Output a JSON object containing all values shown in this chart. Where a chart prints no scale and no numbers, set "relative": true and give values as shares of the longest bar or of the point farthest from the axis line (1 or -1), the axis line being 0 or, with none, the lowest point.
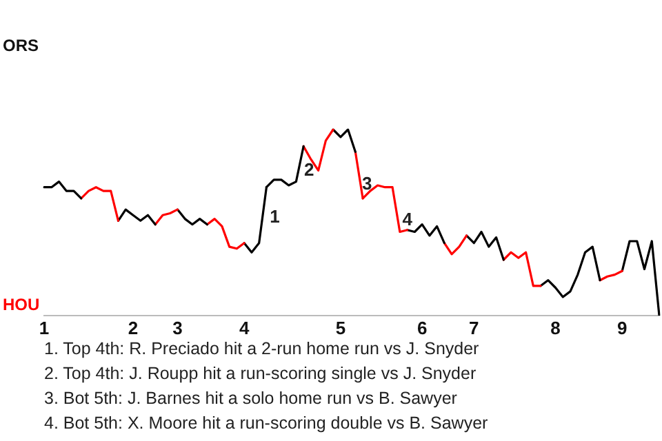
{
  "chart_data": {
    "type": "line",
    "relative": true,
    "categories": [
      "1",
      null,
      null,
      null,
      null,
      null,
      null,
      null,
      null,
      null,
      null,
      null,
      "2",
      null,
      null,
      null,
      null,
      null,
      "3",
      null,
      null,
      null,
      null,
      null,
      null,
      null,
      null,
      "4",
      null,
      null,
      null,
      null,
      null,
      null,
      null,
      null,
      null,
      null,
      null,
      null,
      "5",
      null,
      null,
      null,
      null,
      null,
      null,
      null,
      null,
      null,
      null,
      "6",
      null,
      null,
      null,
      null,
      null,
      null,
      "7",
      null,
      null,
      null,
      null,
      null,
      null,
      null,
      null,
      null,
      null,
      "8",
      null,
      null,
      null,
      null,
      null,
      null,
      null,
      null,
      "9",
      null,
      null,
      null,
      null,
      null
    ],
    "series": [
      {
        "color": "#000000",
        "values": [
          0.69,
          0.69,
          0.72,
          0.67,
          0.67,
          0.63,
          null,
          null,
          null,
          null,
          null,
          null,
          null,
          null,
          null,
          null,
          null,
          null,
          null,
          null,
          null,
          null,
          null,
          null,
          null,
          null,
          null,
          null,
          null,
          null,
          null,
          null,
          null,
          null,
          null,
          null,
          null,
          null,
          null,
          null,
          null,
          null,
          null,
          null,
          null,
          null,
          null,
          null,
          null,
          null,
          null,
          null,
          null,
          null,
          null,
          null,
          null,
          null,
          null,
          null,
          null,
          null,
          null,
          null,
          null,
          null,
          null,
          null,
          null,
          null,
          null,
          null,
          null,
          null,
          null,
          null,
          null,
          null,
          null,
          null,
          null,
          null,
          null,
          null
        ]
      },
      {
        "color": "#ff0000",
        "values": [
          null,
          null,
          null,
          null,
          null,
          0.63,
          0.67,
          0.69,
          0.67,
          0.67,
          0.51,
          null,
          null,
          null,
          null,
          null,
          null,
          null,
          null,
          null,
          null,
          null,
          null,
          null,
          null,
          null,
          null,
          null,
          null,
          null,
          null,
          null,
          null,
          null,
          null,
          null,
          null,
          null,
          null,
          null,
          null,
          null,
          null,
          null,
          null,
          null,
          null,
          null,
          null,
          null,
          null,
          null,
          null,
          null,
          null,
          null,
          null,
          null,
          null,
          null,
          null,
          null,
          null,
          null,
          null,
          null,
          null,
          null,
          null,
          null,
          null,
          null,
          null,
          null,
          null,
          null,
          null,
          null,
          null,
          null,
          null,
          null,
          null,
          null
        ]
      },
      {
        "color": "#000000",
        "values": [
          null,
          null,
          null,
          null,
          null,
          null,
          null,
          null,
          null,
          null,
          0.51,
          0.57,
          0.54,
          0.51,
          0.54,
          0.49,
          null,
          null,
          null,
          null,
          null,
          null,
          null,
          null,
          null,
          null,
          null,
          null,
          null,
          null,
          null,
          null,
          null,
          null,
          null,
          null,
          null,
          null,
          null,
          null,
          null,
          null,
          null,
          null,
          null,
          null,
          null,
          null,
          null,
          null,
          null,
          null,
          null,
          null,
          null,
          null,
          null,
          null,
          null,
          null,
          null,
          null,
          null,
          null,
          null,
          null,
          null,
          null,
          null,
          null,
          null,
          null,
          null,
          null,
          null,
          null,
          null,
          null,
          null,
          null,
          null,
          null,
          null,
          null
        ]
      },
      {
        "color": "#ff0000",
        "values": [
          null,
          null,
          null,
          null,
          null,
          null,
          null,
          null,
          null,
          null,
          null,
          null,
          null,
          null,
          null,
          0.49,
          0.54,
          0.55,
          0.57,
          null,
          null,
          null,
          null,
          null,
          null,
          null,
          null,
          null,
          null,
          null,
          null,
          null,
          null,
          null,
          null,
          null,
          null,
          null,
          null,
          null,
          null,
          null,
          null,
          null,
          null,
          null,
          null,
          null,
          null,
          null,
          null,
          null,
          null,
          null,
          null,
          null,
          null,
          null,
          null,
          null,
          null,
          null,
          null,
          null,
          null,
          null,
          null,
          null,
          null,
          null,
          null,
          null,
          null,
          null,
          null,
          null,
          null,
          null,
          null,
          null,
          null,
          null,
          null,
          null
        ]
      },
      {
        "color": "#000000",
        "values": [
          null,
          null,
          null,
          null,
          null,
          null,
          null,
          null,
          null,
          null,
          null,
          null,
          null,
          null,
          null,
          null,
          null,
          null,
          0.57,
          0.52,
          0.49,
          0.52,
          0.49,
          null,
          null,
          null,
          null,
          null,
          null,
          null,
          null,
          null,
          null,
          null,
          null,
          null,
          null,
          null,
          null,
          null,
          null,
          null,
          null,
          null,
          null,
          null,
          null,
          null,
          null,
          null,
          null,
          null,
          null,
          null,
          null,
          null,
          null,
          null,
          null,
          null,
          null,
          null,
          null,
          null,
          null,
          null,
          null,
          null,
          null,
          null,
          null,
          null,
          null,
          null,
          null,
          null,
          null,
          null,
          null,
          null,
          null,
          null,
          null,
          null
        ]
      },
      {
        "color": "#ff0000",
        "values": [
          null,
          null,
          null,
          null,
          null,
          null,
          null,
          null,
          null,
          null,
          null,
          null,
          null,
          null,
          null,
          null,
          null,
          null,
          null,
          null,
          null,
          null,
          0.49,
          0.52,
          0.48,
          0.37,
          0.36,
          0.39,
          null,
          null,
          null,
          null,
          null,
          null,
          null,
          null,
          null,
          null,
          null,
          null,
          null,
          null,
          null,
          null,
          null,
          null,
          null,
          null,
          null,
          null,
          null,
          null,
          null,
          null,
          null,
          null,
          null,
          null,
          null,
          null,
          null,
          null,
          null,
          null,
          null,
          null,
          null,
          null,
          null,
          null,
          null,
          null,
          null,
          null,
          null,
          null,
          null,
          null,
          null,
          null,
          null,
          null,
          null,
          null
        ]
      },
      {
        "name": "1",
        "color": "#000000",
        "values": [
          null,
          null,
          null,
          null,
          null,
          null,
          null,
          null,
          null,
          null,
          null,
          null,
          null,
          null,
          null,
          null,
          null,
          null,
          null,
          null,
          null,
          null,
          null,
          null,
          null,
          null,
          null,
          0.39,
          0.34,
          0.39,
          0.69,
          null,
          null,
          null,
          null,
          null,
          null,
          null,
          null,
          null,
          null,
          null,
          null,
          null,
          null,
          null,
          null,
          null,
          null,
          null,
          null,
          null,
          null,
          null,
          null,
          null,
          null,
          null,
          null,
          null,
          null,
          null,
          null,
          null,
          null,
          null,
          null,
          null,
          null,
          null,
          null,
          null,
          null,
          null,
          null,
          null,
          null,
          null,
          null,
          null,
          null,
          null,
          null,
          null
        ]
      },
      {
        "name": "2",
        "color": "#000000",
        "values": [
          null,
          null,
          null,
          null,
          null,
          null,
          null,
          null,
          null,
          null,
          null,
          null,
          null,
          null,
          null,
          null,
          null,
          null,
          null,
          null,
          null,
          null,
          null,
          null,
          null,
          null,
          null,
          null,
          null,
          null,
          0.69,
          0.73,
          0.73,
          0.7,
          0.72,
          0.91,
          null,
          null,
          null,
          null,
          null,
          null,
          null,
          null,
          null,
          null,
          null,
          null,
          null,
          null,
          null,
          null,
          null,
          null,
          null,
          null,
          null,
          null,
          null,
          null,
          null,
          null,
          null,
          null,
          null,
          null,
          null,
          null,
          null,
          null,
          null,
          null,
          null,
          null,
          null,
          null,
          null,
          null,
          null,
          null,
          null,
          null,
          null,
          null
        ]
      },
      {
        "color": "#ff0000",
        "values": [
          null,
          null,
          null,
          null,
          null,
          null,
          null,
          null,
          null,
          null,
          null,
          null,
          null,
          null,
          null,
          null,
          null,
          null,
          null,
          null,
          null,
          null,
          null,
          null,
          null,
          null,
          null,
          null,
          null,
          null,
          null,
          null,
          null,
          null,
          null,
          0.91,
          0.84,
          0.78,
          0.94,
          1,
          null,
          null,
          null,
          null,
          null,
          null,
          null,
          null,
          null,
          null,
          null,
          null,
          null,
          null,
          null,
          null,
          null,
          null,
          null,
          null,
          null,
          null,
          null,
          null,
          null,
          null,
          null,
          null,
          null,
          null,
          null,
          null,
          null,
          null,
          null,
          null,
          null,
          null,
          null,
          null,
          null,
          null,
          null,
          null
        ]
      },
      {
        "color": "#000000",
        "values": [
          null,
          null,
          null,
          null,
          null,
          null,
          null,
          null,
          null,
          null,
          null,
          null,
          null,
          null,
          null,
          null,
          null,
          null,
          null,
          null,
          null,
          null,
          null,
          null,
          null,
          null,
          null,
          null,
          null,
          null,
          null,
          null,
          null,
          null,
          null,
          null,
          null,
          null,
          null,
          1,
          0.96,
          1,
          0.88,
          null,
          null,
          null,
          null,
          null,
          null,
          null,
          null,
          null,
          null,
          null,
          null,
          null,
          null,
          null,
          null,
          null,
          null,
          null,
          null,
          null,
          null,
          null,
          null,
          null,
          null,
          null,
          null,
          null,
          null,
          null,
          null,
          null,
          null,
          null,
          null,
          null,
          null,
          null,
          null,
          null
        ]
      },
      {
        "name": "3",
        "color": "#ff0000",
        "values": [
          null,
          null,
          null,
          null,
          null,
          null,
          null,
          null,
          null,
          null,
          null,
          null,
          null,
          null,
          null,
          null,
          null,
          null,
          null,
          null,
          null,
          null,
          null,
          null,
          null,
          null,
          null,
          null,
          null,
          null,
          null,
          null,
          null,
          null,
          null,
          null,
          null,
          null,
          null,
          null,
          null,
          null,
          0.88,
          0.63,
          null,
          null,
          null,
          null,
          null,
          null,
          null,
          null,
          null,
          null,
          null,
          null,
          null,
          null,
          null,
          null,
          null,
          null,
          null,
          null,
          null,
          null,
          null,
          null,
          null,
          null,
          null,
          null,
          null,
          null,
          null,
          null,
          null,
          null,
          null,
          null,
          null,
          null,
          null,
          null
        ]
      },
      {
        "name": "4",
        "color": "#ff0000",
        "values": [
          null,
          null,
          null,
          null,
          null,
          null,
          null,
          null,
          null,
          null,
          null,
          null,
          null,
          null,
          null,
          null,
          null,
          null,
          null,
          null,
          null,
          null,
          null,
          null,
          null,
          null,
          null,
          null,
          null,
          null,
          null,
          null,
          null,
          null,
          null,
          null,
          null,
          null,
          null,
          null,
          null,
          null,
          null,
          0.63,
          0.67,
          0.7,
          0.69,
          0.69,
          0.45,
          0.46,
          null,
          null,
          null,
          null,
          null,
          null,
          null,
          null,
          null,
          null,
          null,
          null,
          null,
          null,
          null,
          null,
          null,
          null,
          null,
          null,
          null,
          null,
          null,
          null,
          null,
          null,
          null,
          null,
          null,
          null,
          null,
          null,
          null,
          null
        ]
      },
      {
        "color": "#000000",
        "values": [
          null,
          null,
          null,
          null,
          null,
          null,
          null,
          null,
          null,
          null,
          null,
          null,
          null,
          null,
          null,
          null,
          null,
          null,
          null,
          null,
          null,
          null,
          null,
          null,
          null,
          null,
          null,
          null,
          null,
          null,
          null,
          null,
          null,
          null,
          null,
          null,
          null,
          null,
          null,
          null,
          null,
          null,
          null,
          null,
          null,
          null,
          null,
          null,
          null,
          0.46,
          0.45,
          0.49,
          0.43,
          0.48,
          0.39,
          null,
          null,
          null,
          null,
          null,
          null,
          null,
          null,
          null,
          null,
          null,
          null,
          null,
          null,
          null,
          null,
          null,
          null,
          null,
          null,
          null,
          null,
          null,
          null,
          null,
          null,
          null,
          null,
          null
        ]
      },
      {
        "color": "#ff0000",
        "values": [
          null,
          null,
          null,
          null,
          null,
          null,
          null,
          null,
          null,
          null,
          null,
          null,
          null,
          null,
          null,
          null,
          null,
          null,
          null,
          null,
          null,
          null,
          null,
          null,
          null,
          null,
          null,
          null,
          null,
          null,
          null,
          null,
          null,
          null,
          null,
          null,
          null,
          null,
          null,
          null,
          null,
          null,
          null,
          null,
          null,
          null,
          null,
          null,
          null,
          null,
          null,
          null,
          null,
          null,
          0.39,
          0.33,
          0.37,
          0.43,
          null,
          null,
          null,
          null,
          null,
          null,
          null,
          null,
          null,
          null,
          null,
          null,
          null,
          null,
          null,
          null,
          null,
          null,
          null,
          null,
          null,
          null,
          null,
          null,
          null,
          null
        ]
      },
      {
        "color": "#000000",
        "values": [
          null,
          null,
          null,
          null,
          null,
          null,
          null,
          null,
          null,
          null,
          null,
          null,
          null,
          null,
          null,
          null,
          null,
          null,
          null,
          null,
          null,
          null,
          null,
          null,
          null,
          null,
          null,
          null,
          null,
          null,
          null,
          null,
          null,
          null,
          null,
          null,
          null,
          null,
          null,
          null,
          null,
          null,
          null,
          null,
          null,
          null,
          null,
          null,
          null,
          null,
          null,
          null,
          null,
          null,
          null,
          null,
          null,
          0.43,
          0.39,
          0.45,
          0.37,
          0.42,
          0.3,
          null,
          null,
          null,
          null,
          null,
          null,
          null,
          null,
          null,
          null,
          null,
          null,
          null,
          null,
          null,
          null,
          null,
          null,
          null,
          null,
          null
        ]
      },
      {
        "color": "#ff0000",
        "values": [
          null,
          null,
          null,
          null,
          null,
          null,
          null,
          null,
          null,
          null,
          null,
          null,
          null,
          null,
          null,
          null,
          null,
          null,
          null,
          null,
          null,
          null,
          null,
          null,
          null,
          null,
          null,
          null,
          null,
          null,
          null,
          null,
          null,
          null,
          null,
          null,
          null,
          null,
          null,
          null,
          null,
          null,
          null,
          null,
          null,
          null,
          null,
          null,
          null,
          null,
          null,
          null,
          null,
          null,
          null,
          null,
          null,
          null,
          null,
          null,
          null,
          null,
          0.3,
          0.34,
          0.31,
          0.34,
          0.16,
          0.16,
          null,
          null,
          null,
          null,
          null,
          null,
          null,
          null,
          null,
          null,
          null,
          null,
          null,
          null,
          null,
          null
        ]
      },
      {
        "color": "#000000",
        "values": [
          null,
          null,
          null,
          null,
          null,
          null,
          null,
          null,
          null,
          null,
          null,
          null,
          null,
          null,
          null,
          null,
          null,
          null,
          null,
          null,
          null,
          null,
          null,
          null,
          null,
          null,
          null,
          null,
          null,
          null,
          null,
          null,
          null,
          null,
          null,
          null,
          null,
          null,
          null,
          null,
          null,
          null,
          null,
          null,
          null,
          null,
          null,
          null,
          null,
          null,
          null,
          null,
          null,
          null,
          null,
          null,
          null,
          null,
          null,
          null,
          null,
          null,
          null,
          null,
          null,
          null,
          null,
          0.16,
          0.19,
          0.15,
          0.1,
          0.13,
          0.22,
          0.34,
          0.37,
          0.19,
          null,
          null,
          null,
          null,
          null,
          null,
          null,
          null
        ]
      },
      {
        "color": "#ff0000",
        "values": [
          null,
          null,
          null,
          null,
          null,
          null,
          null,
          null,
          null,
          null,
          null,
          null,
          null,
          null,
          null,
          null,
          null,
          null,
          null,
          null,
          null,
          null,
          null,
          null,
          null,
          null,
          null,
          null,
          null,
          null,
          null,
          null,
          null,
          null,
          null,
          null,
          null,
          null,
          null,
          null,
          null,
          null,
          null,
          null,
          null,
          null,
          null,
          null,
          null,
          null,
          null,
          null,
          null,
          null,
          null,
          null,
          null,
          null,
          null,
          null,
          null,
          null,
          null,
          null,
          null,
          null,
          null,
          null,
          null,
          null,
          null,
          null,
          null,
          null,
          null,
          0.19,
          0.21,
          0.22,
          0.24,
          null,
          null,
          null,
          null,
          null
        ]
      },
      {
        "color": "#000000",
        "values": [
          null,
          null,
          null,
          null,
          null,
          null,
          null,
          null,
          null,
          null,
          null,
          null,
          null,
          null,
          null,
          null,
          null,
          null,
          null,
          null,
          null,
          null,
          null,
          null,
          null,
          null,
          null,
          null,
          null,
          null,
          null,
          null,
          null,
          null,
          null,
          null,
          null,
          null,
          null,
          null,
          null,
          null,
          null,
          null,
          null,
          null,
          null,
          null,
          null,
          null,
          null,
          null,
          null,
          null,
          null,
          null,
          null,
          null,
          null,
          null,
          null,
          null,
          null,
          null,
          null,
          null,
          null,
          null,
          null,
          null,
          null,
          null,
          null,
          null,
          null,
          null,
          null,
          null,
          0.24,
          0.4,
          0.4,
          0.25,
          0.4,
          0
        ]
      }
    ],
    "marker": "none",
    "line_style": "solid",
    "annotations": [
      "ORS",
      "HOU",
      "1. Top 4th: R. Preciado hit a 2-run home run vs J. Snyder",
      "2. Top 4th: J. Roupp hit a run-scoring single vs J. Snyder",
      "3. Bot 5th: J. Barnes hit a solo home run vs B. Sawyer",
      "4. Bot 5th: X. Moore hit a run-scoring double vs B. Sawyer"
    ]
  }
}
